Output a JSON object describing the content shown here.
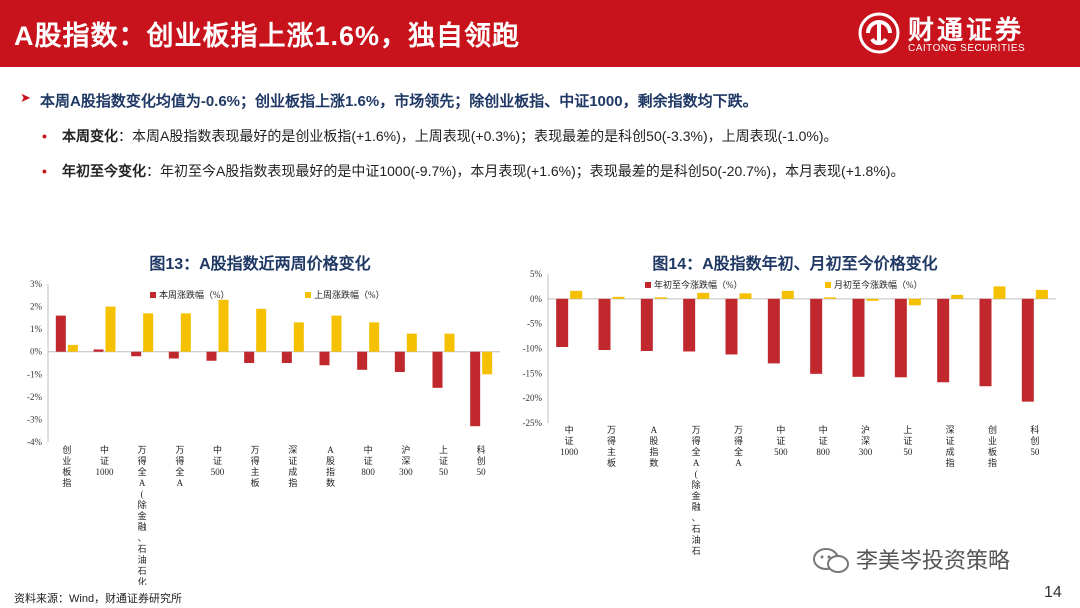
{
  "header": {
    "title": "A股指数：创业板指上涨1.6%，独自领跑"
  },
  "brand": {
    "name_cn": "财通证券",
    "name_en": "CAITONG SECURITIES"
  },
  "summary": {
    "headline": "本周A股指数变化均值为-0.6%；创业板指上涨1.6%，市场领先；除创业板指、中证1000，剩余指数均下跌。",
    "bullets": [
      {
        "label": "本周变化",
        "text": "：本周A股指数表现最好的是创业板指(+1.6%)，上周表现(+0.3%)；表现最差的是科创50(-3.3%)，上周表现(-1.0%)。"
      },
      {
        "label": "年初至今变化",
        "text": "：年初至今A股指数表现最好的是中证1000(-9.7%)，本月表现(+1.6%)；表现最差的是科创50(-20.7%)，本月表现(+1.8%)。"
      }
    ]
  },
  "colors": {
    "brand_red": "#c8131c",
    "series_red": "#c0282d",
    "series_yellow": "#f5c000",
    "title_blue": "#1f3864"
  },
  "chart_data": [
    {
      "type": "bar",
      "title": "图13：A股指数近两周价格变化",
      "categories": [
        "创业板指",
        "中证1000",
        "万得全A(除金融、石油石化)",
        "万得全A",
        "中证500",
        "万得主板",
        "深证成指",
        "A股指数",
        "中证800",
        "沪深300",
        "上证50",
        "科创50"
      ],
      "series": [
        {
          "name": "本周涨跌幅（%）",
          "values": [
            1.6,
            0.1,
            -0.2,
            -0.3,
            -0.4,
            -0.5,
            -0.5,
            -0.6,
            -0.8,
            -0.9,
            -1.6,
            -3.3
          ]
        },
        {
          "name": "上周涨跌幅（%）",
          "values": [
            0.3,
            2.0,
            1.7,
            1.7,
            2.3,
            1.9,
            1.3,
            1.6,
            1.3,
            0.8,
            0.8,
            -1.0
          ]
        }
      ],
      "ylim": [
        -4,
        3
      ],
      "yticks": [
        "3%",
        "2%",
        "1%",
        "0%",
        "-1%",
        "-2%",
        "-3%",
        "-4%"
      ],
      "xlabel": "",
      "ylabel": ""
    },
    {
      "type": "bar",
      "title": "图14：A股指数年初、月初至今价格变化",
      "categories": [
        "中证1000",
        "万得主板",
        "A股指数",
        "万得全A(除金融、石油石化)",
        "万得全A",
        "中证500",
        "中证800",
        "沪深300",
        "上证50",
        "深证成指",
        "创业板指",
        "科创50"
      ],
      "series": [
        {
          "name": "年初至今涨跌幅（%）",
          "values": [
            -9.7,
            -10.3,
            -10.5,
            -10.6,
            -11.2,
            -13.0,
            -15.1,
            -15.7,
            -15.8,
            -16.8,
            -17.6,
            -20.7
          ]
        },
        {
          "name": "月初至今涨跌幅（%）",
          "values": [
            1.6,
            0.4,
            0.3,
            1.2,
            1.1,
            1.6,
            0.3,
            -0.4,
            -1.3,
            0.8,
            2.5,
            1.8
          ]
        }
      ],
      "ylim": [
        -25,
        5
      ],
      "yticks": [
        "5%",
        "0%",
        "-5%",
        "-10%",
        "-15%",
        "-20%",
        "-25%"
      ],
      "xlabel": "",
      "ylabel": ""
    }
  ],
  "footer": {
    "source": "资料来源：Wind，财通证券研究所",
    "watermark": "李美岑投资策略",
    "page": "14"
  }
}
